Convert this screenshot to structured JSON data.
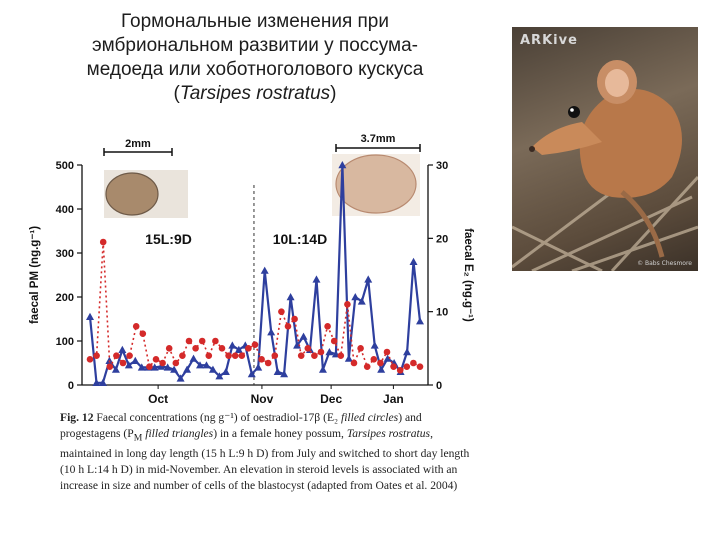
{
  "title": {
    "line1": "Гормональные изменения при",
    "line2": "эмбриональном развитии у поссума-",
    "line3": "медоеда или хоботноголового кускуса",
    "open": "(",
    "species": "Tarsipes rostratus",
    "close": ")"
  },
  "photo": {
    "watermark": "ARKive",
    "credit": "© Babs Chesmore"
  },
  "chart_data": {
    "type": "line",
    "series": [
      {
        "name": "PM (progestagens)",
        "marker": "triangle",
        "style": "solid",
        "color": "#2e3f9e",
        "axis": "left",
        "values": [
          155,
          5,
          5,
          55,
          35,
          80,
          45,
          55,
          40,
          40,
          40,
          42,
          40,
          35,
          15,
          35,
          60,
          45,
          45,
          35,
          20,
          30,
          90,
          80,
          90,
          25,
          40,
          260,
          120,
          30,
          25,
          200,
          90,
          110,
          80,
          240,
          35,
          75,
          70,
          500,
          60,
          200,
          190,
          240,
          90,
          35,
          60,
          50,
          30,
          75,
          280,
          145
        ]
      },
      {
        "name": "E2 (oestradiol-17β)",
        "marker": "circle",
        "style": "dotted",
        "color": "#d42a2a",
        "axis": "right",
        "values": [
          3.5,
          4,
          19.5,
          2.5,
          4,
          3,
          4,
          8,
          7,
          2.5,
          3.5,
          3,
          5,
          3,
          4,
          6,
          5,
          6,
          4,
          6,
          5,
          4,
          4,
          4,
          5,
          5.5,
          3.5,
          3,
          4,
          10,
          8,
          9,
          4,
          5,
          4,
          4.5,
          8,
          6,
          4,
          11,
          3,
          5,
          2.5,
          3.5,
          3,
          4.5,
          2.5,
          2,
          2.5,
          3,
          2.5
        ]
      }
    ],
    "y_left": {
      "label": "faecal PM (ng.g⁻¹)",
      "range": [
        0,
        500
      ],
      "ticks": [
        0,
        100,
        200,
        300,
        400,
        500
      ]
    },
    "y_right": {
      "label": "faecal E₂ (ng.g⁻¹)",
      "range": [
        0,
        30
      ],
      "ticks": [
        0,
        10,
        20,
        30
      ]
    },
    "x_month_labels": [
      "Oct",
      "Nov",
      "Dec",
      "Jan"
    ],
    "x_month_positions": [
      0.22,
      0.52,
      0.72,
      0.9
    ],
    "photoperiod_switch_position": 0.497,
    "annotations": {
      "long_day": "15L:9D",
      "short_day": "10L:14D",
      "scale_small": "2mm",
      "scale_large": "3.7mm"
    }
  },
  "caption": {
    "fig_label": "Fig. 12",
    "t1": "Faecal concentrations (ng g⁻¹) of oestradiol-17β (E₂ ",
    "t2": "filled circles",
    "t3": ") and progestagens (P",
    "t3sub": "M",
    "t4": " filled triangles",
    "t5": ") in a female honey possum, ",
    "t6": "Tarsipes rostratus",
    "t7": ", maintained in long day length (15 h L:9 h D) from July and switched to short day length (10 h L:14 h D) in mid-November. An elevation in steroid levels is associated with an increase in size and number of cells of the blastocyst (adapted from Oates et al. 2004)"
  }
}
